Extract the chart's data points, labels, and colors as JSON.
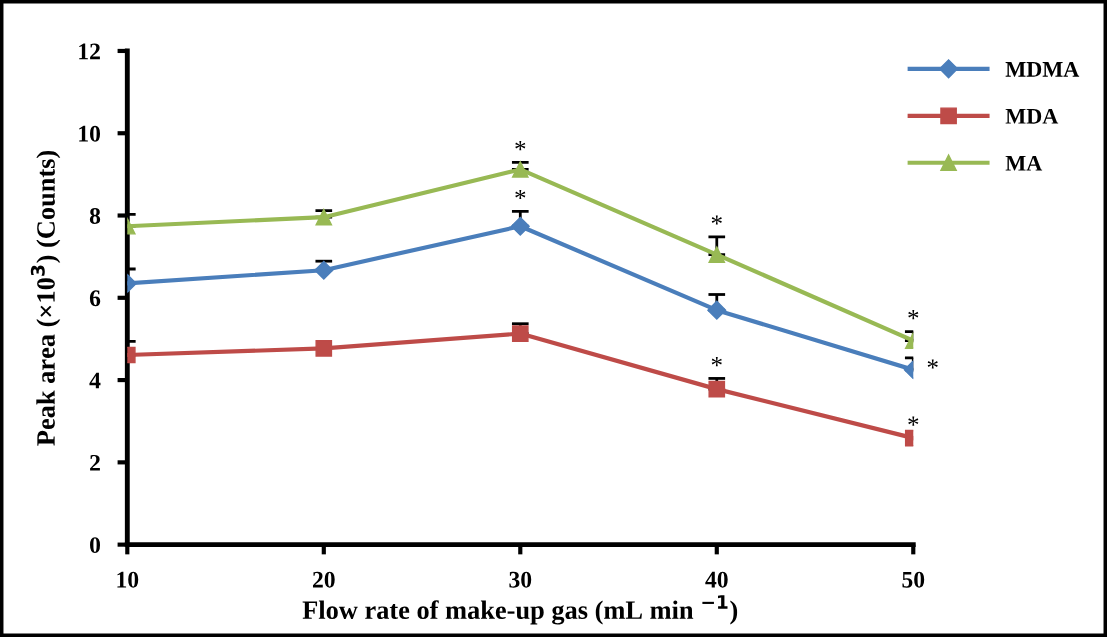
{
  "chart_data": {
    "type": "line",
    "xlabel": "Flow rate of make-up gas (mL min $^{−1}$)",
    "ylabel": "Peak area (×10$^{3}$) (Counts)",
    "x": [
      10,
      20,
      30,
      40,
      50
    ],
    "xlim": [
      10,
      50
    ],
    "xticks": [
      10,
      20,
      30,
      40,
      50
    ],
    "ylim": [
      0,
      12
    ],
    "yticks": [
      0,
      2,
      4,
      6,
      8,
      10,
      12
    ],
    "grid": false,
    "legend": "top right",
    "line_style": "solid",
    "series": [
      {
        "name": "MDMA",
        "color": "#4a7ebb",
        "marker": "diamond",
        "values": [
          6.35,
          6.67,
          7.74,
          5.7,
          4.25
        ],
        "errors": [
          [
            6.35,
            6.7
          ],
          [
            6.67,
            6.89
          ],
          [
            7.74,
            8.1
          ],
          [
            5.7,
            6.08
          ],
          [
            4.25,
            4.54
          ]
        ]
      },
      {
        "name": "MDA",
        "color": "#be4b48",
        "marker": "square",
        "values": [
          4.61,
          4.77,
          5.13,
          3.78,
          2.59
        ],
        "errors": [
          [
            4.61,
            4.94
          ],
          null,
          [
            5.13,
            5.37
          ],
          [
            3.78,
            4.04
          ],
          null
        ]
      },
      {
        "name": "MA",
        "color": "#98b954",
        "marker": "triangle",
        "values": [
          7.74,
          7.96,
          9.12,
          7.05,
          4.96
        ],
        "errors": [
          [
            7.74,
            8.03
          ],
          [
            7.96,
            8.12
          ],
          [
            9.12,
            9.29
          ],
          [
            7.05,
            7.48
          ],
          [
            4.96,
            5.18
          ]
        ]
      }
    ],
    "annotations": [
      {
        "text": "*",
        "x": 30,
        "y": 9.12
      },
      {
        "text": "*",
        "x": 30,
        "y": 7.74
      },
      {
        "text": "*",
        "x": 40,
        "y": 7.05
      },
      {
        "text": "*",
        "x": 40,
        "y": 3.78
      },
      {
        "text": "*",
        "x": 50,
        "y": 4.96
      },
      {
        "text": "*",
        "x": 50,
        "y": 2.59
      },
      {
        "text": "*",
        "x": 50,
        "y": 4.25
      }
    ]
  }
}
